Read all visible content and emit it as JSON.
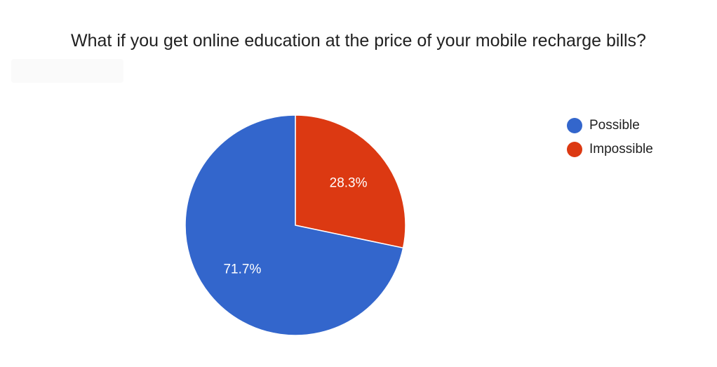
{
  "chart_data": {
    "type": "pie",
    "title": "What if you get online education at the price of your mobile recharge bills?",
    "slices": [
      {
        "label": "Possible",
        "value": 71.7,
        "display": "71.7%",
        "color": "#3366cc"
      },
      {
        "label": "Impossible",
        "value": 28.3,
        "display": "28.3%",
        "color": "#dc3912"
      }
    ],
    "legend_position": "right"
  }
}
